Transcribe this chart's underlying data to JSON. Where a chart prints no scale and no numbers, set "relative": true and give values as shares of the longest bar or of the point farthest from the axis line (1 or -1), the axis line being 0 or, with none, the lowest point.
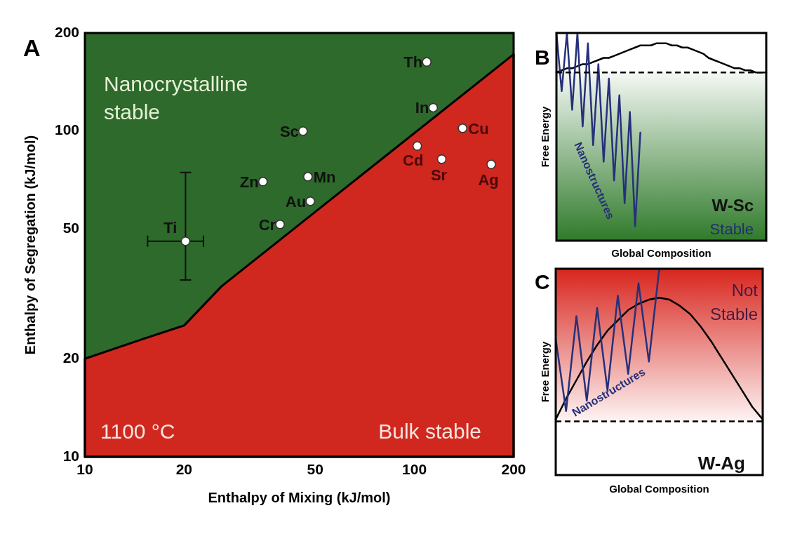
{
  "chart_data": [
    {
      "type": "scatter",
      "title": "A",
      "xlabel": "Enthalpy of Mixing (kJ/mol)",
      "ylabel": "Enthalpy of Segregation (kJ/mol)",
      "log": "xy",
      "xlim": [
        10,
        200
      ],
      "ylim": [
        10,
        200
      ],
      "xticks": [
        10,
        20,
        50,
        100,
        200
      ],
      "yticks": [
        10,
        20,
        50,
        100,
        200
      ],
      "series": [
        {
          "type": "area",
          "color": "#d0281e",
          "x": [
            10,
            15,
            20,
            26,
            200
          ],
          "values": [
            20,
            23,
            25.3,
            33.4,
            172
          ]
        },
        {
          "type": "scatter",
          "color": "#ffffff",
          "marker": "circle",
          "x": [
            109,
            114,
            45.9,
            140,
            102,
            121,
            171,
            47.5,
            34.7,
            48.3,
            39.1,
            20.2
          ],
          "values": [
            163,
            118,
            100,
            102,
            90,
            82,
            79,
            72.4,
            70,
            60.9,
            51.7,
            45.9
          ],
          "errors": [
            null,
            null,
            null,
            null,
            null,
            null,
            null,
            null,
            null,
            null,
            null,
            [
              34.9,
              74.6
            ]
          ],
          "xerrors": [
            null,
            null,
            null,
            null,
            null,
            null,
            null,
            null,
            null,
            null,
            null,
            [
              15.5,
              22.9
            ]
          ]
        }
      ],
      "annotations": [
        "Nanocrystalline stable",
        "1100 °C",
        "Bulk stable",
        {
          "text": "Th",
          "x": 109,
          "y": 163
        },
        {
          "text": "In",
          "x": 114,
          "y": 118
        },
        {
          "text": "Sc",
          "x": 45.9,
          "y": 100
        },
        {
          "text": "Cu",
          "x": 140,
          "y": 102
        },
        {
          "text": "Cd",
          "x": 102,
          "y": 90
        },
        {
          "text": "Sr",
          "x": 121,
          "y": 82
        },
        {
          "text": "Ag",
          "x": 171,
          "y": 79
        },
        {
          "text": "Mn",
          "x": 47.5,
          "y": 72.4
        },
        {
          "text": "Zn",
          "x": 34.7,
          "y": 70
        },
        {
          "text": "Au",
          "x": 48.3,
          "y": 60.9
        },
        {
          "text": "Cr",
          "x": 39.1,
          "y": 51.7
        },
        {
          "text": "Ti",
          "x": 20.2,
          "y": 45.9
        }
      ]
    },
    {
      "type": "line",
      "title": "B",
      "xlabel": "Global Composition",
      "ylabel": "Free Energy",
      "relative": true,
      "categories": [
        null,
        null,
        null,
        null,
        null,
        null,
        null,
        null,
        null,
        null,
        null,
        null,
        null,
        null,
        null,
        null,
        null,
        null,
        null,
        null,
        null,
        null,
        null,
        null,
        null,
        null,
        null,
        null,
        null,
        null,
        null,
        null,
        null,
        null,
        null,
        null,
        null,
        null,
        null,
        null,
        null
      ],
      "series": [
        {
          "color": "#000000",
          "values": [
            0.81,
            0.82,
            0.83,
            0.83,
            0.84,
            0.85,
            0.85,
            0.86,
            0.87,
            0.88,
            0.88,
            0.89,
            0.9,
            0.91,
            0.92,
            0.93,
            0.94,
            0.94,
            0.94,
            0.95,
            0.95,
            0.95,
            0.94,
            0.94,
            0.93,
            0.93,
            0.92,
            0.91,
            0.9,
            0.88,
            0.87,
            0.86,
            0.85,
            0.84,
            0.83,
            0.83,
            0.82,
            0.82,
            0.81,
            0.81,
            0.81
          ]
        },
        {
          "name": "Nanostructures",
          "color": "#26307a",
          "values": [
            1,
            0.72,
            1,
            0.63,
            1,
            0.55,
            0.95,
            0.46,
            0.85,
            0.38,
            0.78,
            0.29,
            0.7,
            0.18,
            0.62,
            0.07,
            0.52,
            null,
            null,
            null,
            null,
            null,
            null,
            null,
            null,
            null,
            null,
            null,
            null,
            null,
            null,
            null,
            null,
            null,
            null,
            null,
            null,
            null,
            null,
            null,
            null
          ]
        }
      ],
      "ref_lines": [
        {
          "axis": "y",
          "value": 0.81,
          "line_style": "dashed",
          "color": "#000000"
        }
      ],
      "bands": [
        {
          "axis": "y",
          "from": 0,
          "to": 0.81,
          "color": "#2f7a2a"
        }
      ],
      "annotations": [
        "W-Sc",
        "Stable"
      ]
    },
    {
      "type": "line",
      "title": "C",
      "xlabel": "Global Composition",
      "ylabel": "Free Energy",
      "relative": true,
      "categories": [
        null,
        null,
        null,
        null,
        null,
        null,
        null,
        null,
        null,
        null,
        null,
        null,
        null,
        null,
        null,
        null,
        null,
        null,
        null,
        null,
        null
      ],
      "series": [
        {
          "color": "#000000",
          "values": [
            0.27,
            0.37,
            0.46,
            0.55,
            0.63,
            0.7,
            0.75,
            0.8,
            0.83,
            0.85,
            0.86,
            0.85,
            0.82,
            0.78,
            0.72,
            0.65,
            0.57,
            0.49,
            0.41,
            0.33,
            0.27
          ]
        },
        {
          "name": "Nanostructures",
          "color": "#26307a",
          "values": [
            0.66,
            0.31,
            0.77,
            0.36,
            0.81,
            0.41,
            0.87,
            0.49,
            0.93,
            0.55,
            1,
            null,
            null,
            null,
            null,
            null,
            null,
            null,
            null,
            null,
            null
          ]
        }
      ],
      "ref_lines": [
        {
          "axis": "y",
          "value": 0.26,
          "line_style": "dashed",
          "color": "#000000"
        }
      ],
      "bands": [
        {
          "axis": "y",
          "from": 0.26,
          "to": 1,
          "color": "#d8261e"
        }
      ],
      "annotations": [
        "Not Stable",
        "W-Ag"
      ]
    }
  ]
}
